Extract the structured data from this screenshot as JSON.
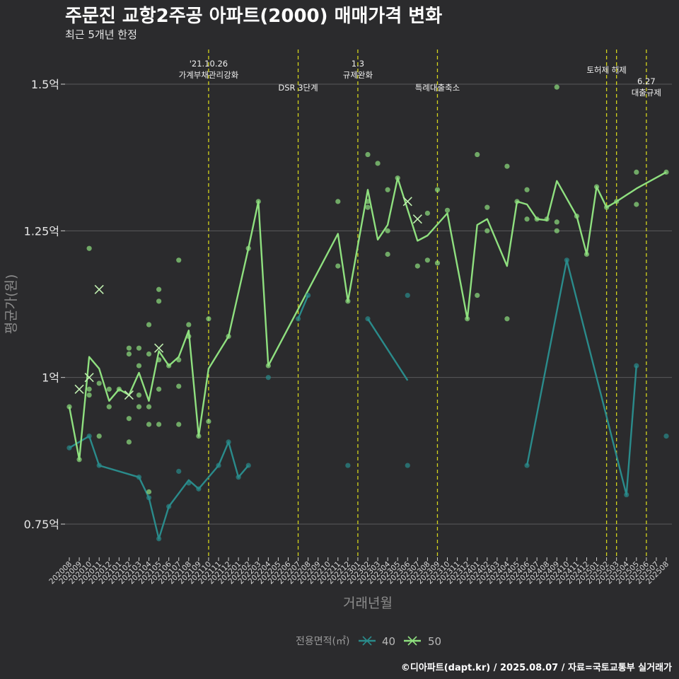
{
  "header": {
    "title": "주문진 교항2주공 아파트(2000) 매매가격 변화",
    "subtitle": "최근 5개년 한정",
    "credit": "©디아파트(dapt.kr) / 2025.08.07 / 자료=국토교통부 실거래가"
  },
  "chart_data": {
    "type": "line",
    "xlabel": "거래년월",
    "ylabel": "평균가(원)",
    "y_unit": "억",
    "ylim": [
      0.69,
      1.57
    ],
    "y_ticks": [
      {
        "value": 0.75,
        "label": "0.75억"
      },
      {
        "value": 1.0,
        "label": "1억"
      },
      {
        "value": 1.25,
        "label": "1.25억"
      },
      {
        "value": 1.5,
        "label": "1.5억"
      }
    ],
    "x_ticks": [
      "202008",
      "202009",
      "202010",
      "202011",
      "202012",
      "202101",
      "202102",
      "202103",
      "202104",
      "202105",
      "202106",
      "202107",
      "202108",
      "202109",
      "202110",
      "202111",
      "202112",
      "202201",
      "202202",
      "202203",
      "202204",
      "202205",
      "202206",
      "202207",
      "202208",
      "202209",
      "202210",
      "202211",
      "202212",
      "202301",
      "202302",
      "202303",
      "202304",
      "202305",
      "202306",
      "202307",
      "202308",
      "202309",
      "202310",
      "202311",
      "202312",
      "202401",
      "202402",
      "202403",
      "202404",
      "202405",
      "202406",
      "202407",
      "202408",
      "202409",
      "202410",
      "202411",
      "202412",
      "202501",
      "202502",
      "202503",
      "202504",
      "202505",
      "202506",
      "202507",
      "202508"
    ],
    "legend": {
      "title": "전용면적(㎡)",
      "position": "bottom"
    },
    "events": [
      {
        "x": "202110",
        "label_lines": [
          "'21.10.26",
          "가계부채관리강화"
        ],
        "label_level": "top"
      },
      {
        "x": "202207",
        "label_lines": [
          "DSR 3단계"
        ],
        "label_level": "mid"
      },
      {
        "x": "202301",
        "label_lines": [
          "1.3",
          "규제완화"
        ],
        "label_level": "top"
      },
      {
        "x": "202309",
        "label_lines": [
          "특례대출축소"
        ],
        "label_level": "mid"
      },
      {
        "x": "202502",
        "label_lines": [
          "토허제 해제"
        ],
        "label_level": "upper"
      },
      {
        "x": "202503",
        "label_lines": [],
        "label_level": "none"
      },
      {
        "x": "202506",
        "label_lines": [
          "6.27",
          "대출규제"
        ],
        "label_level": "lower"
      }
    ],
    "series": [
      {
        "name": "40",
        "color": "#2a8b8b",
        "segments": [
          [
            [
              "202008",
              0.88
            ],
            [
              "202010",
              0.9
            ],
            [
              "202011",
              0.85
            ],
            [
              "202103",
              0.83
            ],
            [
              "202104",
              0.795
            ],
            [
              "202105",
              0.725
            ],
            [
              "202106",
              0.78
            ],
            [
              "202108",
              0.825
            ],
            [
              "202109",
              0.81
            ],
            [
              "202111",
              0.85
            ],
            [
              "202112",
              0.89
            ],
            [
              "202201",
              0.83
            ],
            [
              "202202",
              0.85
            ]
          ],
          [
            [
              "202207",
              1.1
            ],
            [
              "202208",
              1.14
            ]
          ],
          [
            [
              "202302",
              1.1
            ],
            [
              "202306",
              0.995
            ]
          ],
          [
            [
              "202406",
              0.85
            ],
            [
              "202410",
              1.2
            ],
            [
              "202504",
              0.8
            ],
            [
              "202505",
              1.02
            ]
          ]
        ],
        "points": [
          [
            "202008",
            0.88
          ],
          [
            "202010",
            0.9
          ],
          [
            "202011",
            0.85
          ],
          [
            "202103",
            0.83
          ],
          [
            "202104",
            0.795
          ],
          [
            "202105",
            0.725
          ],
          [
            "202106",
            0.78
          ],
          [
            "202107",
            0.84
          ],
          [
            "202108",
            0.82
          ],
          [
            "202109",
            0.81
          ],
          [
            "202111",
            0.85
          ],
          [
            "202112",
            0.89
          ],
          [
            "202201",
            0.83
          ],
          [
            "202202",
            0.85
          ],
          [
            "202204",
            1.0
          ],
          [
            "202207",
            1.1
          ],
          [
            "202208",
            1.14
          ],
          [
            "202212",
            0.85
          ],
          [
            "202302",
            1.1
          ],
          [
            "202306",
            1.14
          ],
          [
            "202306",
            0.85
          ],
          [
            "202406",
            0.85
          ],
          [
            "202410",
            1.2
          ],
          [
            "202504",
            0.8
          ],
          [
            "202505",
            1.02
          ],
          [
            "202508",
            0.9
          ]
        ],
        "crosses": []
      },
      {
        "name": "50",
        "color": "#8fe07f",
        "segments": [
          [
            [
              "202008",
              0.95
            ],
            [
              "202009",
              0.86
            ],
            [
              "202010",
              1.035
            ],
            [
              "202011",
              1.015
            ],
            [
              "202012",
              0.96
            ],
            [
              "202101",
              0.98
            ],
            [
              "202102",
              0.97
            ],
            [
              "202103",
              1.008
            ],
            [
              "202104",
              0.96
            ],
            [
              "202105",
              1.045
            ],
            [
              "202106",
              1.02
            ],
            [
              "202107",
              1.035
            ],
            [
              "202108",
              1.08
            ],
            [
              "202109",
              0.9
            ],
            [
              "202110",
              1.015
            ],
            [
              "202112",
              1.07
            ],
            [
              "202202",
              1.22
            ],
            [
              "202203",
              1.3
            ],
            [
              "202204",
              1.02
            ],
            [
              "202211",
              1.245
            ],
            [
              "202212",
              1.13
            ],
            [
              "202302",
              1.32
            ],
            [
              "202303",
              1.235
            ],
            [
              "202304",
              1.26
            ],
            [
              "202305",
              1.34
            ],
            [
              "202307",
              1.233
            ],
            [
              "202308",
              1.242
            ],
            [
              "202310",
              1.28
            ],
            [
              "202312",
              1.1
            ],
            [
              "202401",
              1.26
            ],
            [
              "202402",
              1.27
            ],
            [
              "202404",
              1.19
            ],
            [
              "202405",
              1.3
            ],
            [
              "202406",
              1.295
            ],
            [
              "202407",
              1.27
            ],
            [
              "202408",
              1.268
            ],
            [
              "202409",
              1.335
            ],
            [
              "202411",
              1.275
            ],
            [
              "202412",
              1.21
            ],
            [
              "202501",
              1.325
            ],
            [
              "202502",
              1.29
            ],
            [
              "202503",
              1.3
            ],
            [
              "202505",
              1.322
            ],
            [
              "202508",
              1.35
            ]
          ]
        ],
        "points": [
          [
            "202008",
            0.95
          ],
          [
            "202009",
            0.86
          ],
          [
            "202010",
            1.22
          ],
          [
            "202010",
            0.98
          ],
          [
            "202010",
            0.97
          ],
          [
            "202011",
            0.99
          ],
          [
            "202011",
            0.9
          ],
          [
            "202012",
            0.95
          ],
          [
            "202012",
            0.98
          ],
          [
            "202101",
            0.98
          ],
          [
            "202102",
            1.05
          ],
          [
            "202102",
            1.04
          ],
          [
            "202102",
            0.93
          ],
          [
            "202102",
            0.89
          ],
          [
            "202103",
            1.05
          ],
          [
            "202103",
            1.02
          ],
          [
            "202103",
            0.97
          ],
          [
            "202103",
            0.95
          ],
          [
            "202104",
            1.09
          ],
          [
            "202104",
            1.04
          ],
          [
            "202104",
            0.95
          ],
          [
            "202104",
            0.92
          ],
          [
            "202104",
            0.805
          ],
          [
            "202105",
            1.15
          ],
          [
            "202105",
            1.13
          ],
          [
            "202105",
            1.03
          ],
          [
            "202105",
            0.98
          ],
          [
            "202105",
            0.92
          ],
          [
            "202106",
            1.02
          ],
          [
            "202107",
            1.2
          ],
          [
            "202107",
            1.03
          ],
          [
            "202107",
            0.985
          ],
          [
            "202107",
            0.92
          ],
          [
            "202108",
            1.09
          ],
          [
            "202108",
            1.07
          ],
          [
            "202109",
            0.9
          ],
          [
            "202110",
            1.1
          ],
          [
            "202110",
            0.925
          ],
          [
            "202112",
            1.07
          ],
          [
            "202202",
            1.22
          ],
          [
            "202203",
            1.3
          ],
          [
            "202204",
            1.02
          ],
          [
            "202211",
            1.3
          ],
          [
            "202211",
            1.19
          ],
          [
            "202212",
            1.13
          ],
          [
            "202302",
            1.38
          ],
          [
            "202302",
            1.3
          ],
          [
            "202302",
            1.29
          ],
          [
            "202303",
            1.365
          ],
          [
            "202304",
            1.32
          ],
          [
            "202304",
            1.25
          ],
          [
            "202304",
            1.21
          ],
          [
            "202305",
            1.34
          ],
          [
            "202307",
            1.19
          ],
          [
            "202308",
            1.28
          ],
          [
            "202308",
            1.2
          ],
          [
            "202309",
            1.32
          ],
          [
            "202309",
            1.195
          ],
          [
            "202310",
            1.285
          ],
          [
            "202312",
            1.1
          ],
          [
            "202401",
            1.38
          ],
          [
            "202401",
            1.14
          ],
          [
            "202402",
            1.29
          ],
          [
            "202402",
            1.25
          ],
          [
            "202404",
            1.36
          ],
          [
            "202404",
            1.1
          ],
          [
            "202405",
            1.3
          ],
          [
            "202406",
            1.32
          ],
          [
            "202406",
            1.27
          ],
          [
            "202407",
            1.27
          ],
          [
            "202408",
            1.27
          ],
          [
            "202409",
            1.495
          ],
          [
            "202409",
            1.265
          ],
          [
            "202409",
            1.25
          ],
          [
            "202411",
            1.275
          ],
          [
            "202412",
            1.21
          ],
          [
            "202501",
            1.325
          ],
          [
            "202502",
            1.29
          ],
          [
            "202503",
            1.3
          ],
          [
            "202505",
            1.35
          ],
          [
            "202505",
            1.295
          ],
          [
            "202508",
            1.35
          ]
        ],
        "crosses": [
          [
            "202009",
            0.98
          ],
          [
            "202010",
            1.0
          ],
          [
            "202011",
            1.15
          ],
          [
            "202102",
            0.97
          ],
          [
            "202105",
            1.05
          ],
          [
            "202306",
            1.3
          ],
          [
            "202307",
            1.27
          ]
        ]
      }
    ]
  }
}
